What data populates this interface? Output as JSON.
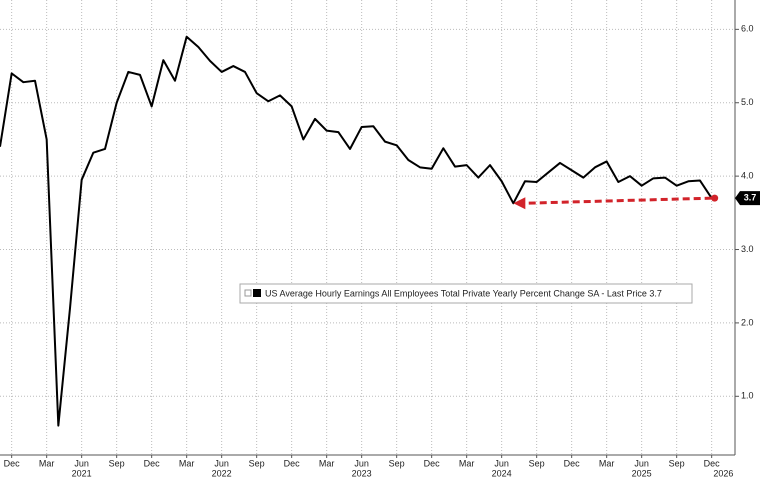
{
  "chart_data": {
    "type": "line",
    "legend_text": "US Average Hourly Earnings All Employees Total Private Yearly Percent Change SA - Last Price 3.7",
    "x": [
      "2020-11",
      "2020-12",
      "2021-01",
      "2021-02",
      "2021-03",
      "2021-04",
      "2021-05",
      "2021-06",
      "2021-07",
      "2021-08",
      "2021-09",
      "2021-10",
      "2021-11",
      "2021-12",
      "2022-01",
      "2022-02",
      "2022-03",
      "2022-04",
      "2022-05",
      "2022-06",
      "2022-07",
      "2022-08",
      "2022-09",
      "2022-10",
      "2022-11",
      "2022-12",
      "2023-01",
      "2023-02",
      "2023-03",
      "2023-04",
      "2023-05",
      "2023-06",
      "2023-07",
      "2023-08",
      "2023-09",
      "2023-10",
      "2023-11",
      "2023-12",
      "2024-01",
      "2024-02",
      "2024-03",
      "2024-04",
      "2024-05",
      "2024-06",
      "2024-07",
      "2024-08",
      "2024-09",
      "2024-10",
      "2024-11",
      "2024-12",
      "2025-01",
      "2025-02",
      "2025-03",
      "2025-04",
      "2025-05",
      "2025-06",
      "2025-07",
      "2025-08",
      "2025-09",
      "2025-10",
      "2025-11",
      "2025-12"
    ],
    "series": [
      {
        "name": "US Average Hourly Earnings All Employees Total Private Yearly Percent Change SA",
        "color": "#000000",
        "values": [
          4.4,
          5.4,
          5.28,
          5.3,
          4.5,
          0.6,
          2.2,
          3.95,
          4.32,
          4.37,
          5.0,
          5.42,
          5.38,
          4.95,
          5.58,
          5.3,
          5.9,
          5.76,
          5.57,
          5.42,
          5.5,
          5.42,
          5.13,
          5.02,
          5.1,
          4.95,
          4.5,
          4.78,
          4.62,
          4.6,
          4.37,
          4.67,
          4.68,
          4.47,
          4.42,
          4.22,
          4.12,
          4.1,
          4.38,
          4.13,
          4.15,
          3.98,
          4.15,
          3.93,
          3.63,
          3.93,
          3.92,
          4.05,
          4.18,
          4.08,
          3.98,
          4.12,
          4.2,
          3.92,
          4.0,
          3.87,
          3.97,
          3.98,
          3.87,
          3.93,
          3.94,
          3.7
        ]
      }
    ],
    "xlim": [
      "2020-11",
      "2026-02"
    ],
    "xticks": [
      {
        "value": "2020-12",
        "label": "Dec"
      },
      {
        "value": "2021-03",
        "label": "Mar"
      },
      {
        "value": "2021-06",
        "label": "Jun"
      },
      {
        "value": "2021-09",
        "label": "Sep"
      },
      {
        "value": "2021-12",
        "label": "Dec"
      },
      {
        "value": "2022-03",
        "label": "Mar"
      },
      {
        "value": "2022-06",
        "label": "Jun"
      },
      {
        "value": "2022-09",
        "label": "Sep"
      },
      {
        "value": "2022-12",
        "label": "Dec"
      },
      {
        "value": "2023-03",
        "label": "Mar"
      },
      {
        "value": "2023-06",
        "label": "Jun"
      },
      {
        "value": "2023-09",
        "label": "Sep"
      },
      {
        "value": "2023-12",
        "label": "Dec"
      },
      {
        "value": "2024-03",
        "label": "Mar"
      },
      {
        "value": "2024-06",
        "label": "Jun"
      },
      {
        "value": "2024-09",
        "label": "Sep"
      },
      {
        "value": "2024-12",
        "label": "Dec"
      },
      {
        "value": "2025-03",
        "label": "Mar"
      },
      {
        "value": "2025-06",
        "label": "Jun"
      },
      {
        "value": "2025-09",
        "label": "Sep"
      },
      {
        "value": "2025-12",
        "label": "Dec"
      }
    ],
    "year_labels": [
      {
        "value": "2021-06",
        "label": "2021"
      },
      {
        "value": "2022-06",
        "label": "2022"
      },
      {
        "value": "2023-06",
        "label": "2023"
      },
      {
        "value": "2024-06",
        "label": "2024"
      },
      {
        "value": "2025-06",
        "label": "2025"
      },
      {
        "value": "2026-01",
        "label": "2026"
      }
    ],
    "ylim": [
      0.2,
      6.4
    ],
    "yticks": [
      {
        "value": 1,
        "label": "1.0"
      },
      {
        "value": 2,
        "label": "2.0"
      },
      {
        "value": 3,
        "label": "3.0"
      },
      {
        "value": 4,
        "label": "4.0"
      },
      {
        "value": 5,
        "label": "5.0"
      },
      {
        "value": 6,
        "label": "6.0"
      }
    ],
    "grid": true
  }
}
